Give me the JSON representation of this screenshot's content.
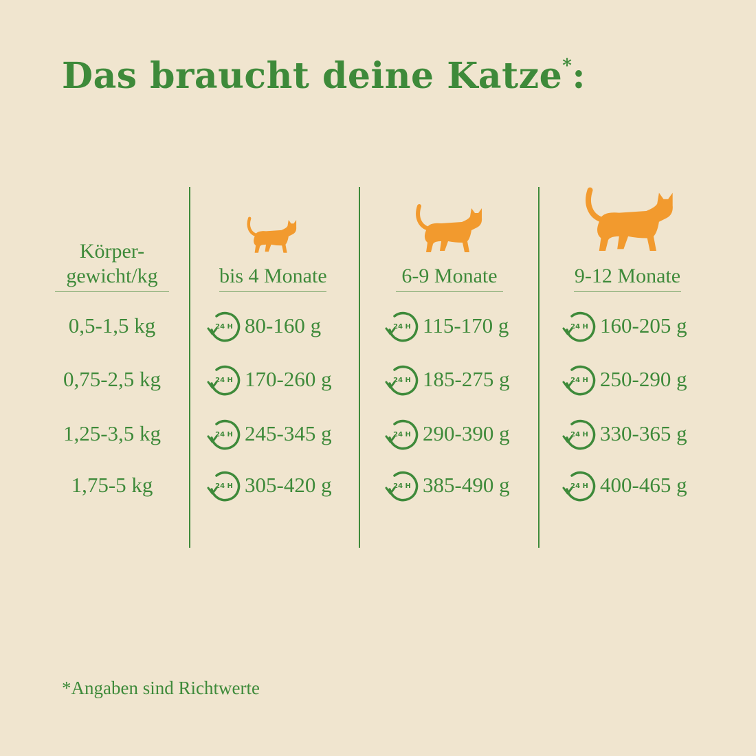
{
  "title": "Das braucht deine Katze",
  "title_asterisk": "*",
  "title_colon": ":",
  "table": {
    "row_header": [
      "Körper-",
      "gewicht/kg"
    ],
    "columns": [
      "bis 4 Monate",
      "6-9 Monate",
      "9-12 Monate"
    ],
    "icon_label": "24 H",
    "rows": [
      [
        "0,5-1,5 kg",
        "80-160 g",
        "115-170 g",
        "160-205 g"
      ],
      [
        "0,75-2,5 kg",
        "170-260 g",
        "185-275 g",
        "250-290 g"
      ],
      [
        "1,25-3,5 kg",
        "245-345 g",
        "290-390 g",
        "330-365 g"
      ],
      [
        "1,75-5 kg",
        "305-420 g",
        "385-490 g",
        "400-465 g"
      ]
    ]
  },
  "footnote": "*Angaben sind Richtwerte"
}
